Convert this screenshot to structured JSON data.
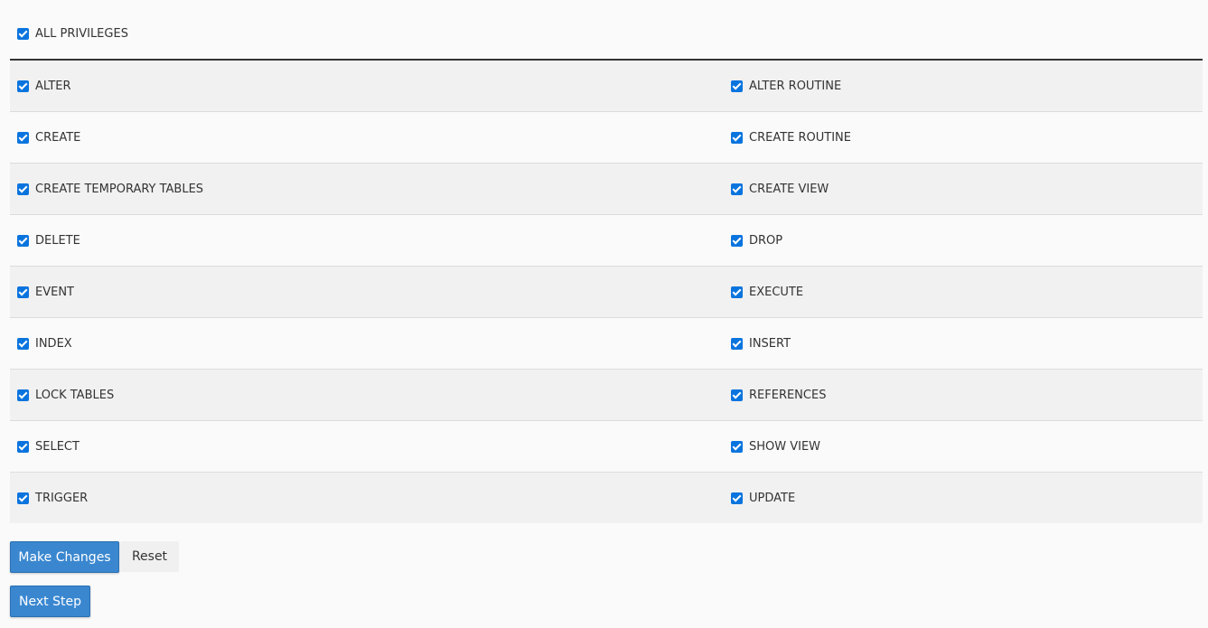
{
  "all_privileges": {
    "label": "ALL PRIVILEGES",
    "checked": true
  },
  "privileges": [
    [
      {
        "label": "ALTER",
        "checked": true
      },
      {
        "label": "ALTER ROUTINE",
        "checked": true
      }
    ],
    [
      {
        "label": "CREATE",
        "checked": true
      },
      {
        "label": "CREATE ROUTINE",
        "checked": true
      }
    ],
    [
      {
        "label": "CREATE TEMPORARY TABLES",
        "checked": true
      },
      {
        "label": "CREATE VIEW",
        "checked": true
      }
    ],
    [
      {
        "label": "DELETE",
        "checked": true
      },
      {
        "label": "DROP",
        "checked": true
      }
    ],
    [
      {
        "label": "EVENT",
        "checked": true
      },
      {
        "label": "EXECUTE",
        "checked": true
      }
    ],
    [
      {
        "label": "INDEX",
        "checked": true
      },
      {
        "label": "INSERT",
        "checked": true
      }
    ],
    [
      {
        "label": "LOCK TABLES",
        "checked": true
      },
      {
        "label": "REFERENCES",
        "checked": true
      }
    ],
    [
      {
        "label": "SELECT",
        "checked": true
      },
      {
        "label": "SHOW VIEW",
        "checked": true
      }
    ],
    [
      {
        "label": "TRIGGER",
        "checked": true
      },
      {
        "label": "UPDATE",
        "checked": true
      }
    ]
  ],
  "buttons": {
    "make_changes": "Make Changes",
    "reset": "Reset",
    "next_step": "Next Step"
  },
  "colors": {
    "accent": "#3a87d0",
    "checkbox": "#0a74de"
  }
}
